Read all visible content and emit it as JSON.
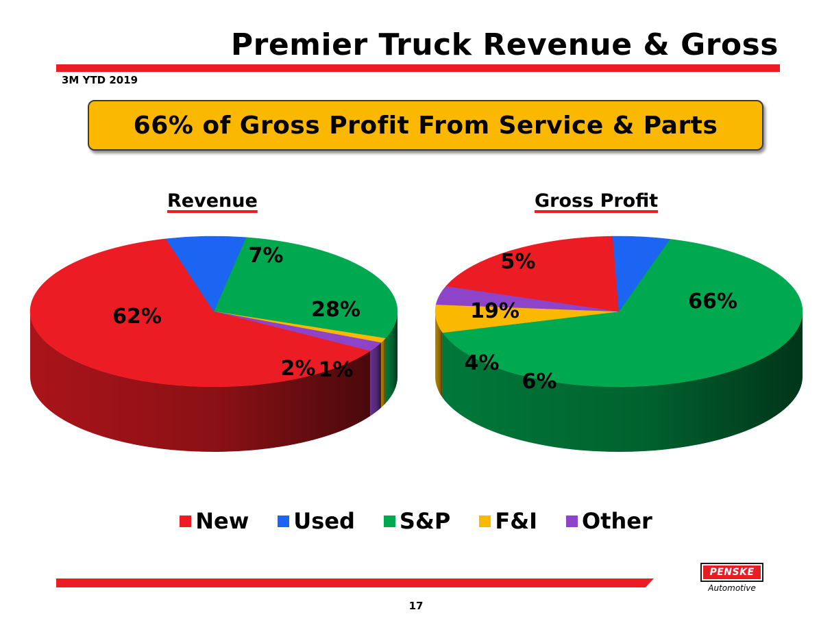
{
  "header": {
    "title": "Premier Truck Revenue & Gross",
    "subtitle": "3M YTD 2019",
    "banner": "66% of Gross Profit From Service & Parts"
  },
  "legend": [
    {
      "label": "New",
      "color": "#ec1c24"
    },
    {
      "label": "Used",
      "color": "#1c64f2"
    },
    {
      "label": "S&P",
      "color": "#00a84f"
    },
    {
      "label": "F&I",
      "color": "#fbb800"
    },
    {
      "label": "Other",
      "color": "#8e44c9"
    }
  ],
  "chart_data": [
    {
      "type": "pie",
      "title": "Revenue",
      "categories": [
        "New",
        "Used",
        "S&P",
        "F&I",
        "Other"
      ],
      "values": [
        62,
        7,
        28,
        1,
        2
      ],
      "labels": [
        "62%",
        "7%",
        "28%",
        "1%",
        "2%"
      ]
    },
    {
      "type": "pie",
      "title": "Gross Profit",
      "categories": [
        "New",
        "Used",
        "S&P",
        "F&I",
        "Other"
      ],
      "values": [
        19,
        5,
        66,
        6,
        4
      ],
      "labels": [
        "19%",
        "5%",
        "66%",
        "6%",
        "4%"
      ]
    }
  ],
  "footer": {
    "logo_text": "PENSKE",
    "logo_subtext": "Automotive",
    "page_number": "17"
  }
}
